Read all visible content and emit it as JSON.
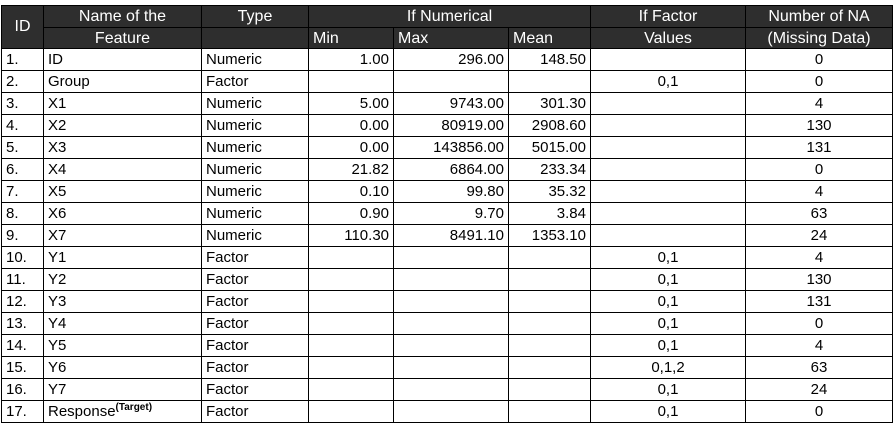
{
  "table": {
    "headers": {
      "id": "ID",
      "name_line1": "Name of the",
      "name_line2": "Feature",
      "type": "Type",
      "if_numerical": "If Numerical",
      "min": "Min",
      "max": "Max",
      "mean": "Mean",
      "if_factor_line1": "If Factor",
      "if_factor_line2": "Values",
      "na_line1": "Number of NA",
      "na_line2": "(Missing Data)"
    },
    "rows": [
      {
        "id": "1.",
        "name": "ID",
        "type": "Numeric",
        "min": "1.00",
        "max": "296.00",
        "mean": "148.50",
        "factor": "",
        "na": "0"
      },
      {
        "id": "2.",
        "name": "Group",
        "type": "Factor",
        "min": "",
        "max": "",
        "mean": "",
        "factor": "0,1",
        "na": "0"
      },
      {
        "id": "3.",
        "name": "X1",
        "type": "Numeric",
        "min": "5.00",
        "max": "9743.00",
        "mean": "301.30",
        "factor": "",
        "na": "4"
      },
      {
        "id": "4.",
        "name": "X2",
        "type": "Numeric",
        "min": "0.00",
        "max": "80919.00",
        "mean": "2908.60",
        "factor": "",
        "na": "130"
      },
      {
        "id": "5.",
        "name": "X3",
        "type": "Numeric",
        "min": "0.00",
        "max": "143856.00",
        "mean": "5015.00",
        "factor": "",
        "na": "131"
      },
      {
        "id": "6.",
        "name": "X4",
        "type": "Numeric",
        "min": "21.82",
        "max": "6864.00",
        "mean": "233.34",
        "factor": "",
        "na": "0"
      },
      {
        "id": "7.",
        "name": "X5",
        "type": "Numeric",
        "min": "0.10",
        "max": "99.80",
        "mean": "35.32",
        "factor": "",
        "na": "4"
      },
      {
        "id": "8.",
        "name": "X6",
        "type": "Numeric",
        "min": "0.90",
        "max": "9.70",
        "mean": "3.84",
        "factor": "",
        "na": "63"
      },
      {
        "id": "9.",
        "name": "X7",
        "type": "Numeric",
        "min": "110.30",
        "max": "8491.10",
        "mean": "1353.10",
        "factor": "",
        "na": "24"
      },
      {
        "id": "10.",
        "name": "Y1",
        "type": "Factor",
        "min": "",
        "max": "",
        "mean": "",
        "factor": "0,1",
        "na": "4"
      },
      {
        "id": "11.",
        "name": "Y2",
        "type": "Factor",
        "min": "",
        "max": "",
        "mean": "",
        "factor": "0,1",
        "na": "130"
      },
      {
        "id": "12.",
        "name": "Y3",
        "type": "Factor",
        "min": "",
        "max": "",
        "mean": "",
        "factor": "0,1",
        "na": "131"
      },
      {
        "id": "13.",
        "name": "Y4",
        "type": "Factor",
        "min": "",
        "max": "",
        "mean": "",
        "factor": "0,1",
        "na": "0"
      },
      {
        "id": "14.",
        "name": "Y5",
        "type": "Factor",
        "min": "",
        "max": "",
        "mean": "",
        "factor": "0,1",
        "na": "4"
      },
      {
        "id": "15.",
        "name": "Y6",
        "type": "Factor",
        "min": "",
        "max": "",
        "mean": "",
        "factor": "0,1,2",
        "na": "63"
      },
      {
        "id": "16.",
        "name": "Y7",
        "type": "Factor",
        "min": "",
        "max": "",
        "mean": "",
        "factor": "0,1",
        "na": "24"
      },
      {
        "id": "17.",
        "name": "Response",
        "name_sup": "(Target)",
        "type": "Factor",
        "min": "",
        "max": "",
        "mean": "",
        "factor": "0,1",
        "na": "0"
      }
    ]
  },
  "colors": {
    "header_bg": "#2e2e2e",
    "header_text": "#ffffff",
    "border": "#000000"
  }
}
